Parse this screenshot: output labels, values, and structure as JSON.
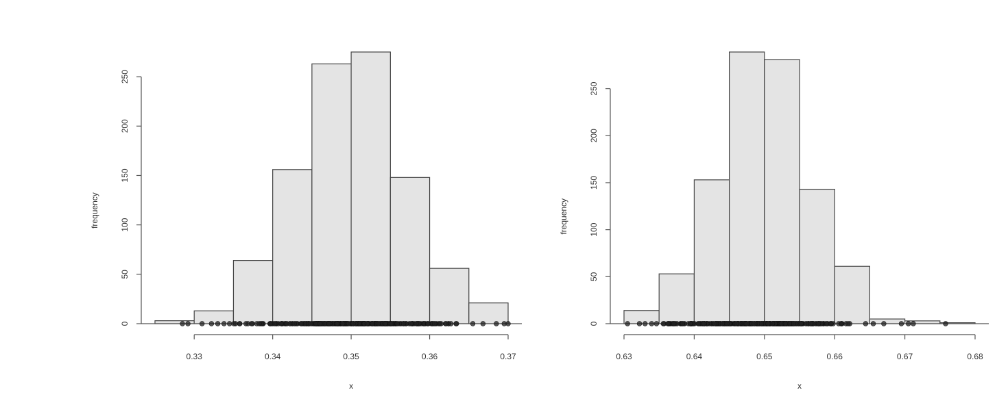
{
  "chart_data": [
    {
      "type": "bar",
      "subtype": "histogram",
      "xlabel": "x",
      "ylabel": "frequency",
      "bin_edges": [
        0.325,
        0.33,
        0.335,
        0.34,
        0.345,
        0.35,
        0.355,
        0.36,
        0.365,
        0.37
      ],
      "values": [
        3,
        13,
        64,
        156,
        263,
        275,
        148,
        56,
        21
      ],
      "xlim": [
        0.325,
        0.37
      ],
      "ylim": [
        0,
        275
      ],
      "x_ticks": [
        0.33,
        0.34,
        0.35,
        0.36,
        0.37
      ],
      "x_tick_labels": [
        "0.33",
        "0.34",
        "0.35",
        "0.36",
        "0.37"
      ],
      "y_ticks": [
        0,
        50,
        100,
        150,
        200,
        250
      ],
      "y_tick_labels": [
        "0",
        "50",
        "100",
        "150",
        "200",
        "250"
      ],
      "rug": {
        "range": [
          0.328,
          0.37
        ],
        "dense_range": [
          0.335,
          0.365
        ],
        "outliers": [
          0.3285,
          0.3292,
          0.331,
          0.3322,
          0.333,
          0.3338,
          0.3345,
          0.3655,
          0.3668,
          0.3685,
          0.3695,
          0.37
        ]
      }
    },
    {
      "type": "bar",
      "subtype": "histogram",
      "xlabel": "x",
      "ylabel": "frequency",
      "bin_edges": [
        0.63,
        0.635,
        0.64,
        0.645,
        0.65,
        0.655,
        0.66,
        0.665,
        0.67,
        0.675,
        0.68
      ],
      "values": [
        14,
        53,
        153,
        289,
        281,
        143,
        61,
        5,
        3,
        1
      ],
      "xlim": [
        0.63,
        0.68
      ],
      "ylim": [
        0,
        289
      ],
      "x_ticks": [
        0.63,
        0.64,
        0.65,
        0.66,
        0.67,
        0.68
      ],
      "x_tick_labels": [
        "0.63",
        "0.64",
        "0.65",
        "0.66",
        "0.67",
        "0.68"
      ],
      "y_ticks": [
        0,
        50,
        100,
        150,
        200,
        250
      ],
      "y_tick_labels": [
        "0",
        "50",
        "100",
        "150",
        "200",
        "250"
      ],
      "rug": {
        "range": [
          0.6305,
          0.676
        ],
        "dense_range": [
          0.6335,
          0.665
        ],
        "outliers": [
          0.6305,
          0.6322,
          0.633,
          0.6655,
          0.667,
          0.6695,
          0.6705,
          0.6712,
          0.6758
        ]
      }
    }
  ]
}
